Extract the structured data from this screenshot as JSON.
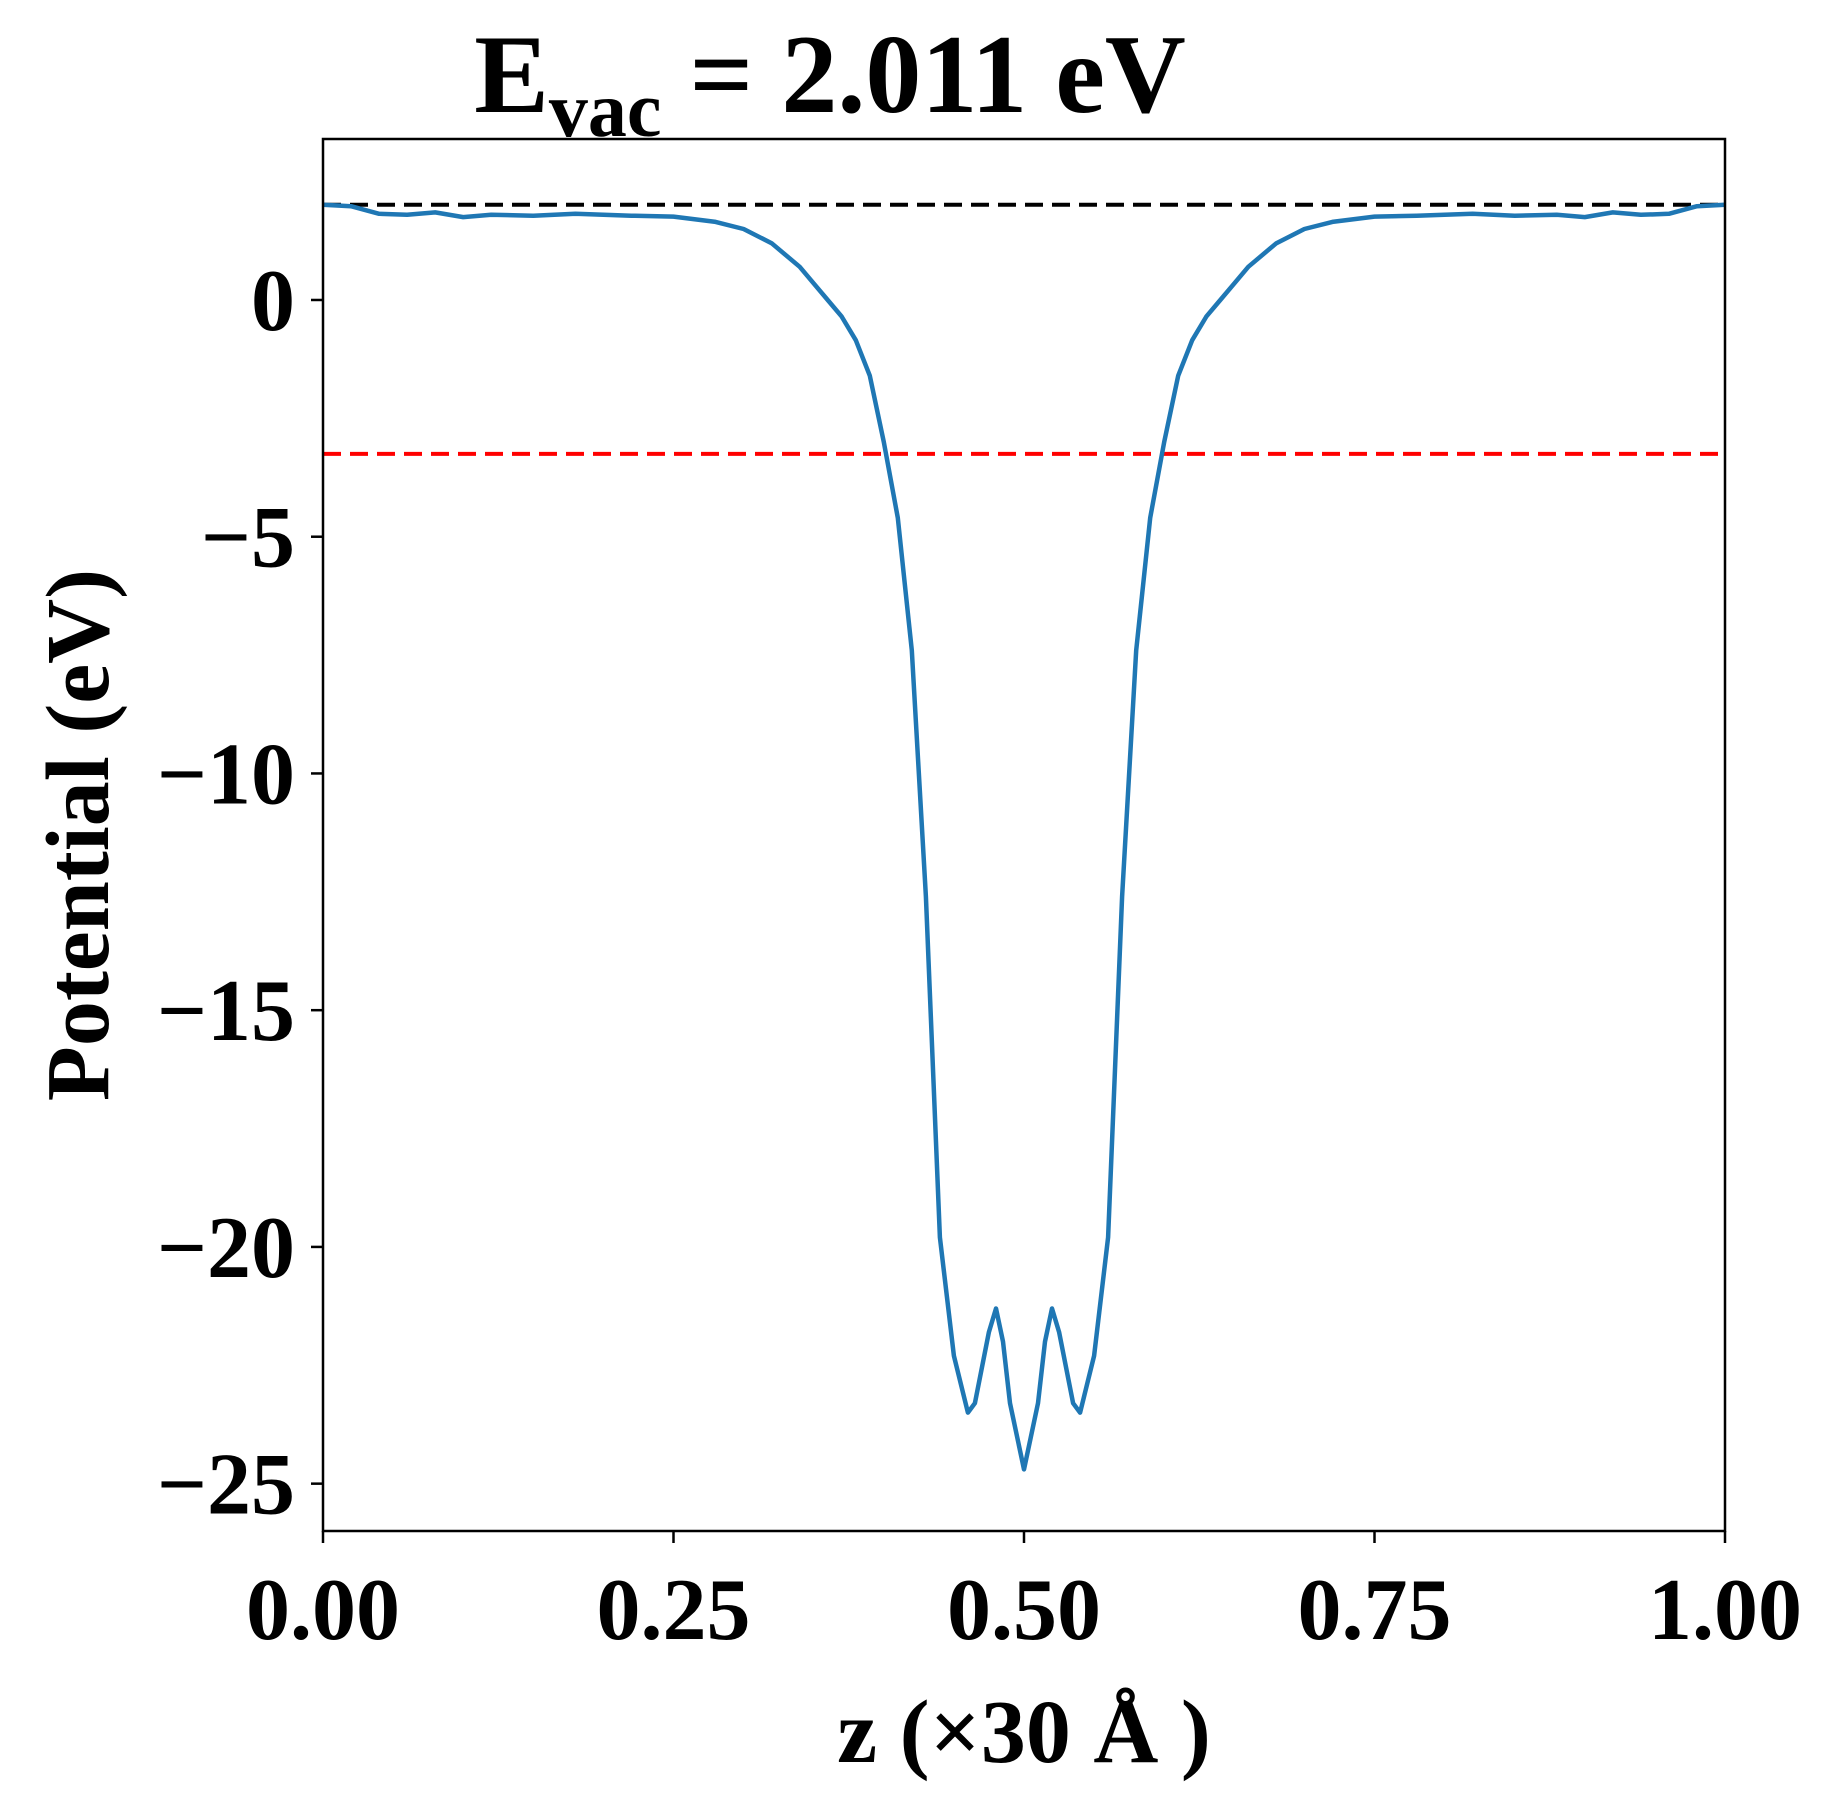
{
  "chart_data": {
    "type": "line",
    "title_main": "E",
    "title_sub": "vac",
    "title_rest": " = 2.011 eV",
    "xlabel": "z (×30 Å )",
    "ylabel": "Potential (eV)",
    "xlim": [
      0,
      1
    ],
    "ylim": [
      -26,
      3.4
    ],
    "grid": false,
    "xticks": [
      0,
      0.25,
      0.5,
      0.75,
      1.0
    ],
    "xtick_labels": [
      "0.00",
      "0.25",
      "0.50",
      "0.75",
      "1.00"
    ],
    "yticks": [
      0,
      -5,
      -10,
      -15,
      -20,
      -25
    ],
    "ytick_labels": [
      "0",
      "−5",
      "−10",
      "−15",
      "−20",
      "−25"
    ],
    "hlines": [
      {
        "y": 2.011,
        "color": "#000000",
        "style": "dashed"
      },
      {
        "y": -3.25,
        "color": "#ff0000",
        "style": "dashed"
      }
    ],
    "series": [
      {
        "color": "#1f77b4",
        "x": [
          0.0,
          0.02,
          0.04,
          0.06,
          0.08,
          0.1,
          0.12,
          0.15,
          0.18,
          0.2,
          0.22,
          0.25,
          0.28,
          0.3,
          0.32,
          0.34,
          0.35,
          0.36,
          0.37,
          0.38,
          0.39,
          0.4,
          0.41,
          0.42,
          0.43,
          0.44,
          0.45,
          0.46,
          0.465,
          0.475,
          0.48,
          0.485,
          0.49,
          0.5,
          0.51,
          0.515,
          0.52,
          0.525,
          0.535,
          0.54,
          0.55,
          0.56,
          0.57,
          0.58,
          0.59,
          0.6,
          0.61,
          0.62,
          0.63,
          0.64,
          0.65,
          0.66,
          0.68,
          0.7,
          0.72,
          0.75,
          0.78,
          0.8,
          0.82,
          0.85,
          0.88,
          0.9,
          0.92,
          0.94,
          0.96,
          0.98,
          1.0
        ],
        "y": [
          2.01,
          1.98,
          1.82,
          1.8,
          1.85,
          1.75,
          1.8,
          1.78,
          1.82,
          1.8,
          1.78,
          1.76,
          1.65,
          1.5,
          1.2,
          0.7,
          0.35,
          0.0,
          -0.35,
          -0.85,
          -1.6,
          -3.0,
          -4.6,
          -7.4,
          -12.6,
          -19.8,
          -22.3,
          -23.5,
          -23.3,
          -21.8,
          -21.3,
          -22.0,
          -23.3,
          -24.7,
          -23.3,
          -22.0,
          -21.3,
          -21.8,
          -23.3,
          -23.5,
          -22.3,
          -19.8,
          -12.6,
          -7.4,
          -4.6,
          -3.0,
          -1.6,
          -0.85,
          -0.35,
          0.0,
          0.35,
          0.7,
          1.2,
          1.5,
          1.65,
          1.76,
          1.78,
          1.8,
          1.82,
          1.78,
          1.8,
          1.75,
          1.85,
          1.8,
          1.82,
          1.98,
          2.01
        ]
      }
    ]
  }
}
